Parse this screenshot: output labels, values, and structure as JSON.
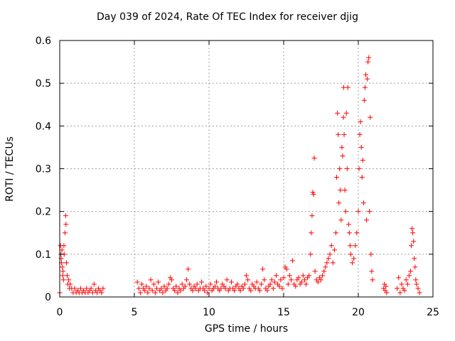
{
  "chart_data": {
    "type": "scatter",
    "title": "Day 039 of 2024, Rate Of TEC Index for receiver djig",
    "xlabel": "GPS time / hours",
    "ylabel": "ROTI / TECUs",
    "xlim": [
      0,
      25
    ],
    "ylim": [
      0,
      0.6
    ],
    "x_ticks": [
      "0",
      "5",
      "10",
      "15",
      "20",
      "25"
    ],
    "y_ticks": [
      "0",
      "0.1",
      "0.2",
      "0.3",
      "0.4",
      "0.5",
      "0.6"
    ],
    "grid": true,
    "marker": "+",
    "color": "#ff0000",
    "series": [
      {
        "values": [
          [
            0.0,
            0.01
          ],
          [
            0.05,
            0.12
          ],
          [
            0.08,
            0.1
          ],
          [
            0.1,
            0.09
          ],
          [
            0.12,
            0.08
          ],
          [
            0.15,
            0.11
          ],
          [
            0.18,
            0.07
          ],
          [
            0.2,
            0.05
          ],
          [
            0.22,
            0.06
          ],
          [
            0.25,
            0.04
          ],
          [
            0.28,
            0.12
          ],
          [
            0.3,
            0.1
          ],
          [
            0.35,
            0.15
          ],
          [
            0.4,
            0.19
          ],
          [
            0.42,
            0.17
          ],
          [
            0.45,
            0.08
          ],
          [
            0.5,
            0.05
          ],
          [
            0.55,
            0.03
          ],
          [
            0.6,
            0.04
          ],
          [
            0.65,
            0.02
          ],
          [
            0.7,
            0.03
          ],
          [
            0.8,
            0.02
          ],
          [
            0.9,
            0.01
          ],
          [
            1.0,
            0.02
          ],
          [
            1.1,
            0.01
          ],
          [
            1.2,
            0.015
          ],
          [
            1.3,
            0.01
          ],
          [
            1.4,
            0.02
          ],
          [
            1.5,
            0.01
          ],
          [
            1.6,
            0.015
          ],
          [
            1.7,
            0.01
          ],
          [
            1.8,
            0.02
          ],
          [
            1.9,
            0.01
          ],
          [
            2.0,
            0.015
          ],
          [
            2.1,
            0.02
          ],
          [
            2.2,
            0.01
          ],
          [
            2.3,
            0.03
          ],
          [
            2.4,
            0.015
          ],
          [
            2.5,
            0.01
          ],
          [
            2.6,
            0.02
          ],
          [
            2.7,
            0.015
          ],
          [
            2.8,
            0.01
          ],
          [
            2.9,
            0.02
          ],
          [
            5.2,
            0.035
          ],
          [
            5.3,
            0.02
          ],
          [
            5.4,
            0.01
          ],
          [
            5.5,
            0.03
          ],
          [
            5.6,
            0.02
          ],
          [
            5.7,
            0.015
          ],
          [
            5.8,
            0.025
          ],
          [
            5.9,
            0.01
          ],
          [
            6.0,
            0.02
          ],
          [
            6.1,
            0.04
          ],
          [
            6.2,
            0.015
          ],
          [
            6.3,
            0.03
          ],
          [
            6.4,
            0.01
          ],
          [
            6.5,
            0.02
          ],
          [
            6.6,
            0.035
          ],
          [
            6.7,
            0.015
          ],
          [
            6.8,
            0.02
          ],
          [
            6.9,
            0.01
          ],
          [
            7.0,
            0.025
          ],
          [
            7.1,
            0.015
          ],
          [
            7.2,
            0.02
          ],
          [
            7.3,
            0.03
          ],
          [
            7.4,
            0.045
          ],
          [
            7.5,
            0.04
          ],
          [
            7.6,
            0.02
          ],
          [
            7.7,
            0.015
          ],
          [
            7.8,
            0.025
          ],
          [
            7.9,
            0.01
          ],
          [
            8.0,
            0.02
          ],
          [
            8.1,
            0.015
          ],
          [
            8.2,
            0.03
          ],
          [
            8.3,
            0.02
          ],
          [
            8.4,
            0.025
          ],
          [
            8.5,
            0.04
          ],
          [
            8.6,
            0.065
          ],
          [
            8.7,
            0.03
          ],
          [
            8.8,
            0.02
          ],
          [
            8.9,
            0.015
          ],
          [
            9.0,
            0.025
          ],
          [
            9.1,
            0.02
          ],
          [
            9.2,
            0.03
          ],
          [
            9.3,
            0.015
          ],
          [
            9.4,
            0.02
          ],
          [
            9.5,
            0.035
          ],
          [
            9.6,
            0.02
          ],
          [
            9.7,
            0.015
          ],
          [
            9.8,
            0.025
          ],
          [
            9.9,
            0.01
          ],
          [
            10.0,
            0.02
          ],
          [
            10.1,
            0.03
          ],
          [
            10.2,
            0.015
          ],
          [
            10.3,
            0.02
          ],
          [
            10.4,
            0.025
          ],
          [
            10.5,
            0.035
          ],
          [
            10.6,
            0.02
          ],
          [
            10.7,
            0.015
          ],
          [
            10.8,
            0.02
          ],
          [
            10.9,
            0.03
          ],
          [
            11.0,
            0.025
          ],
          [
            11.1,
            0.02
          ],
          [
            11.2,
            0.04
          ],
          [
            11.3,
            0.015
          ],
          [
            11.4,
            0.02
          ],
          [
            11.5,
            0.035
          ],
          [
            11.6,
            0.02
          ],
          [
            11.7,
            0.015
          ],
          [
            11.8,
            0.025
          ],
          [
            11.9,
            0.03
          ],
          [
            12.0,
            0.02
          ],
          [
            12.1,
            0.015
          ],
          [
            12.2,
            0.025
          ],
          [
            12.3,
            0.02
          ],
          [
            12.4,
            0.03
          ],
          [
            12.5,
            0.05
          ],
          [
            12.6,
            0.04
          ],
          [
            12.7,
            0.02
          ],
          [
            12.8,
            0.015
          ],
          [
            12.9,
            0.03
          ],
          [
            13.0,
            0.025
          ],
          [
            13.1,
            0.02
          ],
          [
            13.2,
            0.035
          ],
          [
            13.3,
            0.02
          ],
          [
            13.4,
            0.015
          ],
          [
            13.5,
            0.03
          ],
          [
            13.6,
            0.065
          ],
          [
            13.7,
            0.04
          ],
          [
            13.8,
            0.02
          ],
          [
            13.9,
            0.015
          ],
          [
            14.0,
            0.025
          ],
          [
            14.1,
            0.03
          ],
          [
            14.2,
            0.04
          ],
          [
            14.3,
            0.02
          ],
          [
            14.4,
            0.035
          ],
          [
            14.5,
            0.05
          ],
          [
            14.6,
            0.03
          ],
          [
            14.7,
            0.025
          ],
          [
            14.8,
            0.04
          ],
          [
            14.9,
            0.02
          ],
          [
            15.0,
            0.045
          ],
          [
            15.1,
            0.07
          ],
          [
            15.2,
            0.065
          ],
          [
            15.3,
            0.03
          ],
          [
            15.4,
            0.05
          ],
          [
            15.5,
            0.04
          ],
          [
            15.6,
            0.085
          ],
          [
            15.7,
            0.03
          ],
          [
            15.8,
            0.025
          ],
          [
            15.9,
            0.04
          ],
          [
            16.0,
            0.045
          ],
          [
            16.1,
            0.03
          ],
          [
            16.2,
            0.035
          ],
          [
            16.3,
            0.05
          ],
          [
            16.4,
            0.04
          ],
          [
            16.5,
            0.03
          ],
          [
            16.6,
            0.045
          ],
          [
            16.7,
            0.05
          ],
          [
            16.8,
            0.1
          ],
          [
            16.85,
            0.15
          ],
          [
            16.9,
            0.19
          ],
          [
            16.95,
            0.245
          ],
          [
            17.0,
            0.24
          ],
          [
            17.05,
            0.325
          ],
          [
            17.1,
            0.06
          ],
          [
            17.2,
            0.04
          ],
          [
            17.3,
            0.035
          ],
          [
            17.4,
            0.045
          ],
          [
            17.5,
            0.04
          ],
          [
            17.6,
            0.05
          ],
          [
            17.7,
            0.06
          ],
          [
            17.8,
            0.07
          ],
          [
            17.9,
            0.08
          ],
          [
            18.0,
            0.09
          ],
          [
            18.1,
            0.1
          ],
          [
            18.2,
            0.12
          ],
          [
            18.3,
            0.08
          ],
          [
            18.4,
            0.11
          ],
          [
            18.5,
            0.15
          ],
          [
            18.55,
            0.28
          ],
          [
            18.6,
            0.43
          ],
          [
            18.65,
            0.38
          ],
          [
            18.7,
            0.22
          ],
          [
            18.75,
            0.3
          ],
          [
            18.8,
            0.25
          ],
          [
            18.85,
            0.18
          ],
          [
            18.9,
            0.35
          ],
          [
            18.95,
            0.33
          ],
          [
            19.0,
            0.42
          ],
          [
            19.02,
            0.49
          ],
          [
            19.05,
            0.38
          ],
          [
            19.1,
            0.25
          ],
          [
            19.15,
            0.2
          ],
          [
            19.2,
            0.43
          ],
          [
            19.25,
            0.3
          ],
          [
            19.3,
            0.49
          ],
          [
            19.35,
            0.17
          ],
          [
            19.4,
            0.15
          ],
          [
            19.45,
            0.12
          ],
          [
            19.5,
            0.1
          ],
          [
            19.6,
            0.08
          ],
          [
            19.7,
            0.09
          ],
          [
            19.8,
            0.12
          ],
          [
            19.9,
            0.15
          ],
          [
            20.0,
            0.2
          ],
          [
            20.05,
            0.3
          ],
          [
            20.1,
            0.38
          ],
          [
            20.15,
            0.41
          ],
          [
            20.2,
            0.35
          ],
          [
            20.25,
            0.28
          ],
          [
            20.3,
            0.32
          ],
          [
            20.35,
            0.22
          ],
          [
            20.4,
            0.46
          ],
          [
            20.45,
            0.49
          ],
          [
            20.5,
            0.52
          ],
          [
            20.55,
            0.18
          ],
          [
            20.6,
            0.51
          ],
          [
            20.65,
            0.55
          ],
          [
            20.7,
            0.56
          ],
          [
            20.75,
            0.2
          ],
          [
            20.8,
            0.42
          ],
          [
            20.85,
            0.1
          ],
          [
            20.9,
            0.06
          ],
          [
            20.95,
            0.04
          ],
          [
            21.7,
            0.02
          ],
          [
            21.75,
            0.03
          ],
          [
            21.8,
            0.015
          ],
          [
            21.85,
            0.025
          ],
          [
            21.9,
            0.01
          ],
          [
            22.6,
            0.02
          ],
          [
            22.7,
            0.045
          ],
          [
            22.8,
            0.01
          ],
          [
            22.9,
            0.03
          ],
          [
            23.0,
            0.02
          ],
          [
            23.1,
            0.015
          ],
          [
            23.2,
            0.04
          ],
          [
            23.3,
            0.03
          ],
          [
            23.4,
            0.05
          ],
          [
            23.5,
            0.06
          ],
          [
            23.55,
            0.12
          ],
          [
            23.6,
            0.16
          ],
          [
            23.65,
            0.15
          ],
          [
            23.7,
            0.13
          ],
          [
            23.75,
            0.09
          ],
          [
            23.8,
            0.07
          ],
          [
            23.85,
            0.04
          ],
          [
            23.9,
            0.03
          ],
          [
            24.0,
            0.02
          ],
          [
            24.1,
            0.01
          ]
        ]
      }
    ]
  }
}
